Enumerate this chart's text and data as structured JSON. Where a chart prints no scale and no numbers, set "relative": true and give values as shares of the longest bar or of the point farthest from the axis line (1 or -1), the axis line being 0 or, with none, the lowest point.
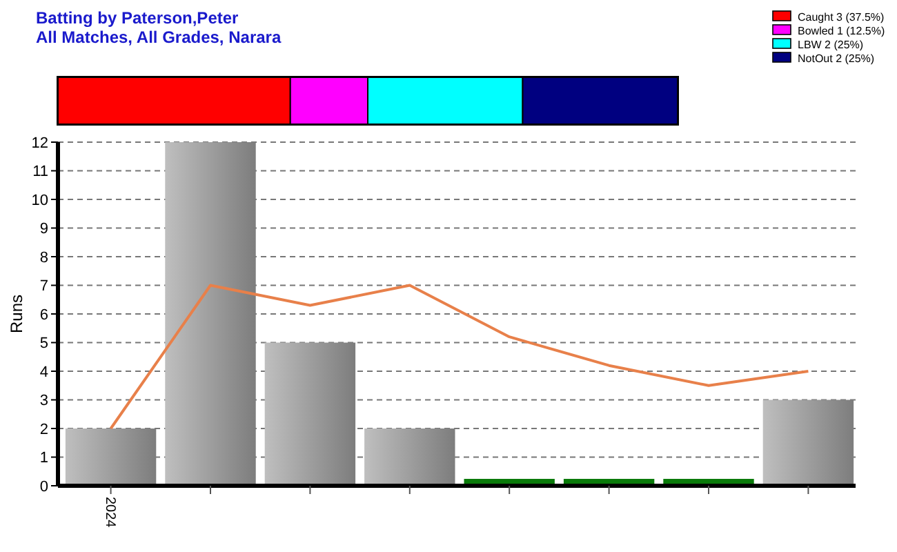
{
  "chart_data": [
    {
      "type": "bar",
      "title": "Batting by Paterson,Peter",
      "subtitle": "All Matches, All Grades, Narara",
      "orientation": "horizontal",
      "stacked": true,
      "relative": true,
      "categories": [
        null
      ],
      "legend": "top right",
      "series": [
        {
          "name": "Caught 3 (37.5%)",
          "color": "#ff0000",
          "values": [
            0.375
          ]
        },
        {
          "name": "Bowled 1 (12.5%)",
          "color": "#ff00ff",
          "values": [
            0.125
          ]
        },
        {
          "name": "LBW 2 (25%)",
          "color": "#00ffff",
          "values": [
            0.25
          ]
        },
        {
          "name": "NotOut 2 (25%)",
          "color": "#000080",
          "values": [
            0.25
          ]
        }
      ]
    },
    {
      "type": "bar",
      "ylabel": "Runs",
      "categories": [
        "2024",
        null,
        null,
        null,
        null,
        null,
        null,
        null
      ],
      "ylim": [
        0,
        12
      ],
      "yticks": [
        0,
        1,
        2,
        3,
        4,
        5,
        6,
        7,
        8,
        9,
        10,
        11,
        12
      ],
      "grid": "y",
      "series": [
        {
          "type": "bar",
          "values": [
            2,
            12,
            5,
            2,
            0,
            0,
            0,
            3
          ],
          "colors": [
            "#a0a0a0",
            "#a0a0a0",
            "#a0a0a0",
            "#a0a0a0",
            "#0a7a0a",
            "#0a7a0a",
            "#0a7a0a",
            "#a0a0a0"
          ]
        },
        {
          "type": "line",
          "color": "#e8804a",
          "values": [
            2,
            7,
            6.3,
            7,
            5.2,
            4.2,
            3.5,
            4
          ]
        }
      ]
    }
  ]
}
